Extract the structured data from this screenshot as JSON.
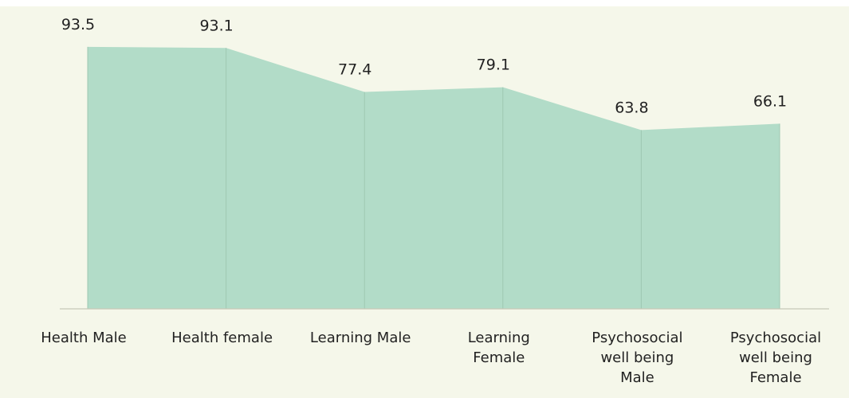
{
  "chart_data": {
    "type": "area",
    "categories": [
      "Health Male",
      "Health female",
      "Learning Male",
      "Learning Female",
      "Psychosocial well being Male",
      "Psychosocial well being Female"
    ],
    "values": [
      93.5,
      93.1,
      77.4,
      79.1,
      63.8,
      66.1
    ],
    "color": "#b2dcc8",
    "ylim": [
      0,
      100
    ]
  }
}
